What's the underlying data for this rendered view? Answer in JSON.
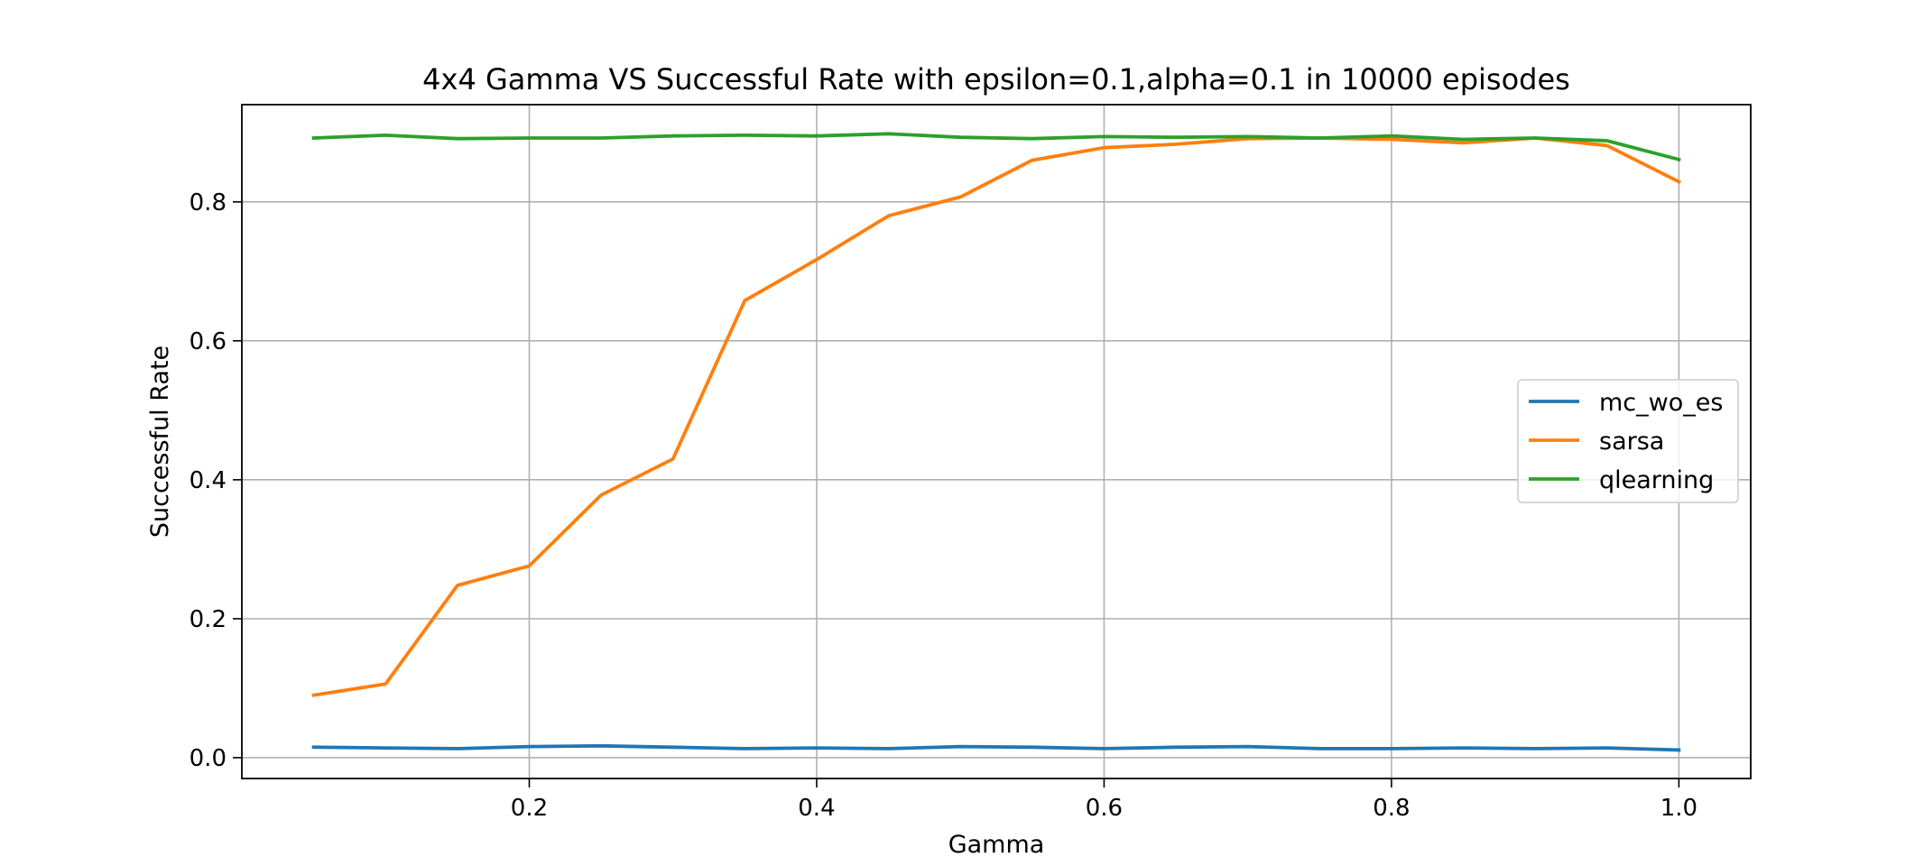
{
  "chart_data": {
    "type": "line",
    "title": "4x4 Gamma VS Successful Rate with epsilon=0.1,alpha=0.1 in 10000 episodes",
    "xlabel": "Gamma",
    "ylabel": "Successful Rate",
    "xlim": [
      0.0,
      1.05
    ],
    "ylim": [
      -0.03,
      0.94
    ],
    "xticks": [
      0.2,
      0.4,
      0.6,
      0.8,
      1.0
    ],
    "xtick_labels": [
      "0.2",
      "0.4",
      "0.6",
      "0.8",
      "1.0"
    ],
    "yticks": [
      0.0,
      0.2,
      0.4,
      0.6,
      0.8
    ],
    "ytick_labels": [
      "0.0",
      "0.2",
      "0.4",
      "0.6",
      "0.8"
    ],
    "grid": true,
    "legend_position": "center-right",
    "x": [
      0.05,
      0.1,
      0.15,
      0.2,
      0.25,
      0.3,
      0.35,
      0.4,
      0.45,
      0.5,
      0.55,
      0.6,
      0.65,
      0.7,
      0.75,
      0.8,
      0.85,
      0.9,
      0.95,
      1.0
    ],
    "series": [
      {
        "name": "mc_wo_es",
        "color": "#1f77b4",
        "values": [
          0.015,
          0.014,
          0.013,
          0.016,
          0.017,
          0.015,
          0.013,
          0.014,
          0.013,
          0.016,
          0.015,
          0.013,
          0.015,
          0.016,
          0.013,
          0.013,
          0.014,
          0.013,
          0.014,
          0.011
        ]
      },
      {
        "name": "sarsa",
        "color": "#ff7f0e",
        "values": [
          0.09,
          0.106,
          0.248,
          0.276,
          0.378,
          0.43,
          0.658,
          0.717,
          0.78,
          0.807,
          0.86,
          0.878,
          0.883,
          0.891,
          0.892,
          0.89,
          0.885,
          0.892,
          0.881,
          0.829
        ]
      },
      {
        "name": "qlearning",
        "color": "#2ca02c",
        "values": [
          0.892,
          0.896,
          0.891,
          0.892,
          0.892,
          0.895,
          0.896,
          0.895,
          0.898,
          0.893,
          0.891,
          0.894,
          0.893,
          0.894,
          0.892,
          0.895,
          0.89,
          0.892,
          0.888,
          0.861
        ]
      }
    ]
  }
}
